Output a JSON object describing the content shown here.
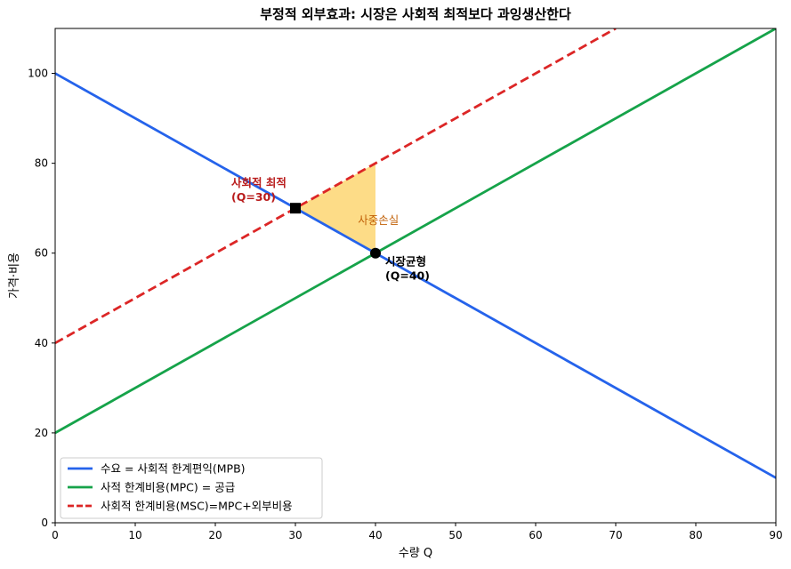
{
  "chart_data": {
    "type": "line",
    "title": "부정적 외부효과: 시장은 사회적 최적보다 과잉생산한다",
    "xlabel": "수량 Q",
    "ylabel": "가격·비용",
    "xlim": [
      0,
      90
    ],
    "ylim": [
      0,
      110
    ],
    "xticks": [
      0,
      10,
      20,
      30,
      40,
      50,
      60,
      70,
      80,
      90
    ],
    "yticks": [
      0,
      20,
      40,
      60,
      80,
      100
    ],
    "grid": false,
    "legend_position": "bottom-left",
    "series": [
      {
        "name": "수요 = 사회적 한계편익(MPB)",
        "color": "#2563eb",
        "style": "solid",
        "x": [
          0,
          90
        ],
        "y": [
          100,
          10
        ]
      },
      {
        "name": "사적 한계비용(MPC) = 공급",
        "color": "#16a34a",
        "style": "solid",
        "x": [
          0,
          90
        ],
        "y": [
          20,
          110
        ]
      },
      {
        "name": "사회적 한계비용(MSC)=MPC+외부비용",
        "color": "#dc2626",
        "style": "dashed",
        "x": [
          0,
          70
        ],
        "y": [
          40,
          110
        ]
      }
    ],
    "deadweight_loss": {
      "label": "사중손실",
      "color": "#fbbf24",
      "points": [
        [
          30,
          70
        ],
        [
          40,
          80
        ],
        [
          40,
          60
        ]
      ]
    },
    "annotations": [
      {
        "id": "social-optimum",
        "x": 30,
        "y": 70,
        "marker": "square",
        "line1": "사회적 최적",
        "line2": "(Q=30)",
        "color": "#b91c1c"
      },
      {
        "id": "market-equilibrium",
        "x": 40,
        "y": 60,
        "marker": "circle",
        "line1": "시장균형",
        "line2": "(Q=40)",
        "color": "#000000"
      }
    ]
  }
}
